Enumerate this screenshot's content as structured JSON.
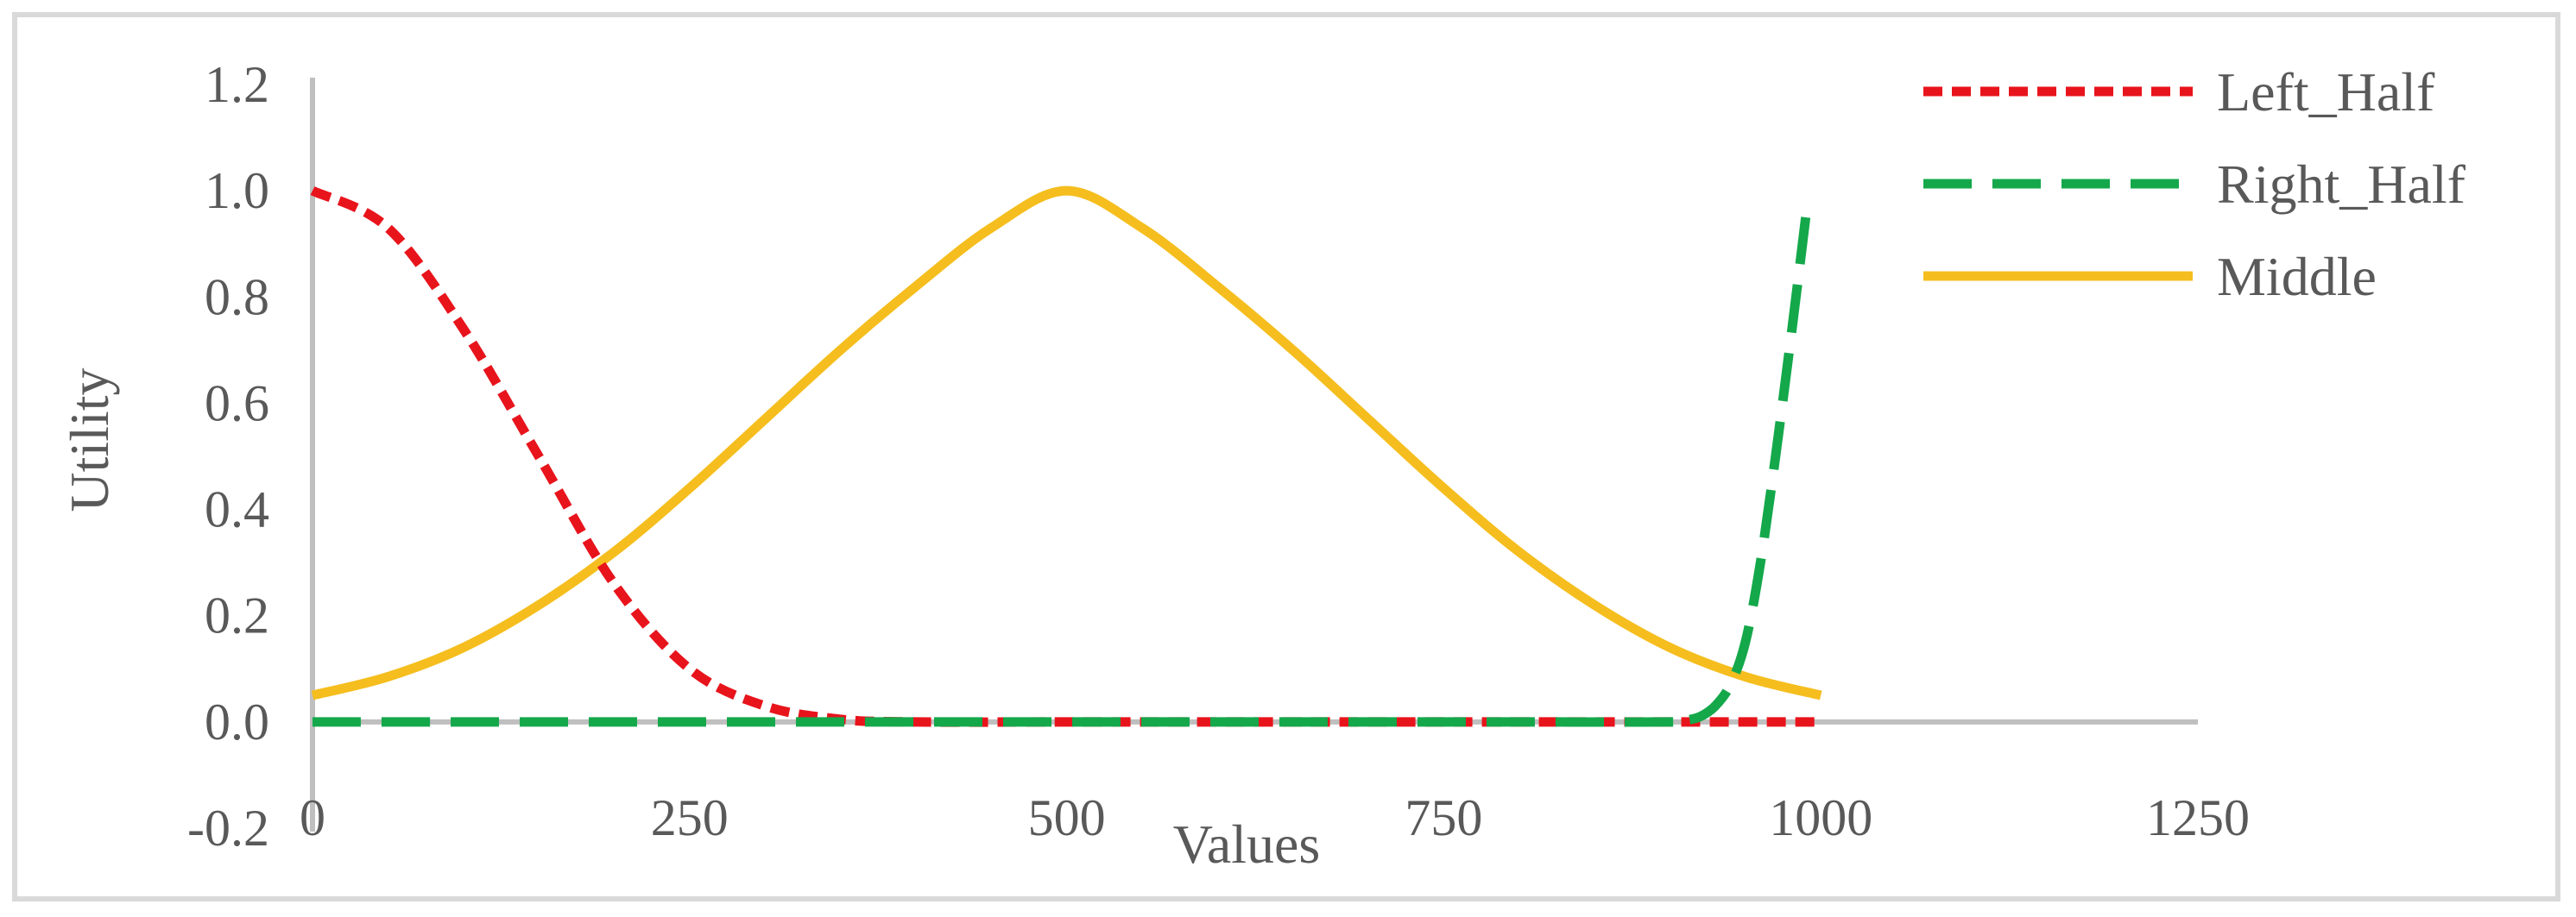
{
  "chart_data": {
    "type": "line",
    "title": "",
    "xlabel": "Values",
    "ylabel": "Utility",
    "xlim": [
      0,
      1250
    ],
    "ylim": [
      -0.2,
      1.2
    ],
    "x_ticks": [
      "0",
      "250",
      "500",
      "750",
      "1000",
      "1250"
    ],
    "y_ticks": [
      "1.2",
      "1.0",
      "0.8",
      "0.6",
      "0.4",
      "0.2",
      "0.0",
      "-0.2"
    ],
    "grid": false,
    "legend_position": "top-right",
    "series": [
      {
        "name": "Left_Half",
        "color": "#e8141c",
        "dash": "short-dash",
        "x": [
          0,
          50,
          100,
          150,
          200,
          250,
          300,
          350,
          400,
          500,
          600,
          700,
          800,
          900,
          1000
        ],
        "y": [
          1.0,
          0.93,
          0.74,
          0.5,
          0.26,
          0.1,
          0.03,
          0.005,
          0.0,
          0.0,
          0.0,
          0.0,
          0.0,
          0.0,
          0.0
        ]
      },
      {
        "name": "Right_Half",
        "color": "#14a84b",
        "dash": "long-dash",
        "x": [
          0,
          100,
          200,
          300,
          400,
          500,
          600,
          700,
          800,
          900,
          910,
          920,
          930,
          940,
          950,
          960,
          970,
          980,
          990
        ],
        "y": [
          0.0,
          0.0,
          0.0,
          0.0,
          0.0,
          0.0,
          0.0,
          0.0,
          0.0,
          0.0,
          0.003,
          0.01,
          0.03,
          0.07,
          0.15,
          0.3,
          0.5,
          0.72,
          0.95
        ]
      },
      {
        "name": "Middle",
        "color": "#f5be1e",
        "dash": "solid",
        "x": [
          0,
          50,
          100,
          150,
          200,
          250,
          300,
          350,
          400,
          450,
          500,
          550,
          600,
          650,
          700,
          750,
          800,
          850,
          900,
          950,
          1000
        ],
        "y": [
          0.05,
          0.085,
          0.14,
          0.22,
          0.32,
          0.44,
          0.57,
          0.7,
          0.82,
          0.93,
          1.0,
          0.93,
          0.82,
          0.7,
          0.57,
          0.44,
          0.32,
          0.22,
          0.14,
          0.085,
          0.05
        ]
      }
    ]
  }
}
